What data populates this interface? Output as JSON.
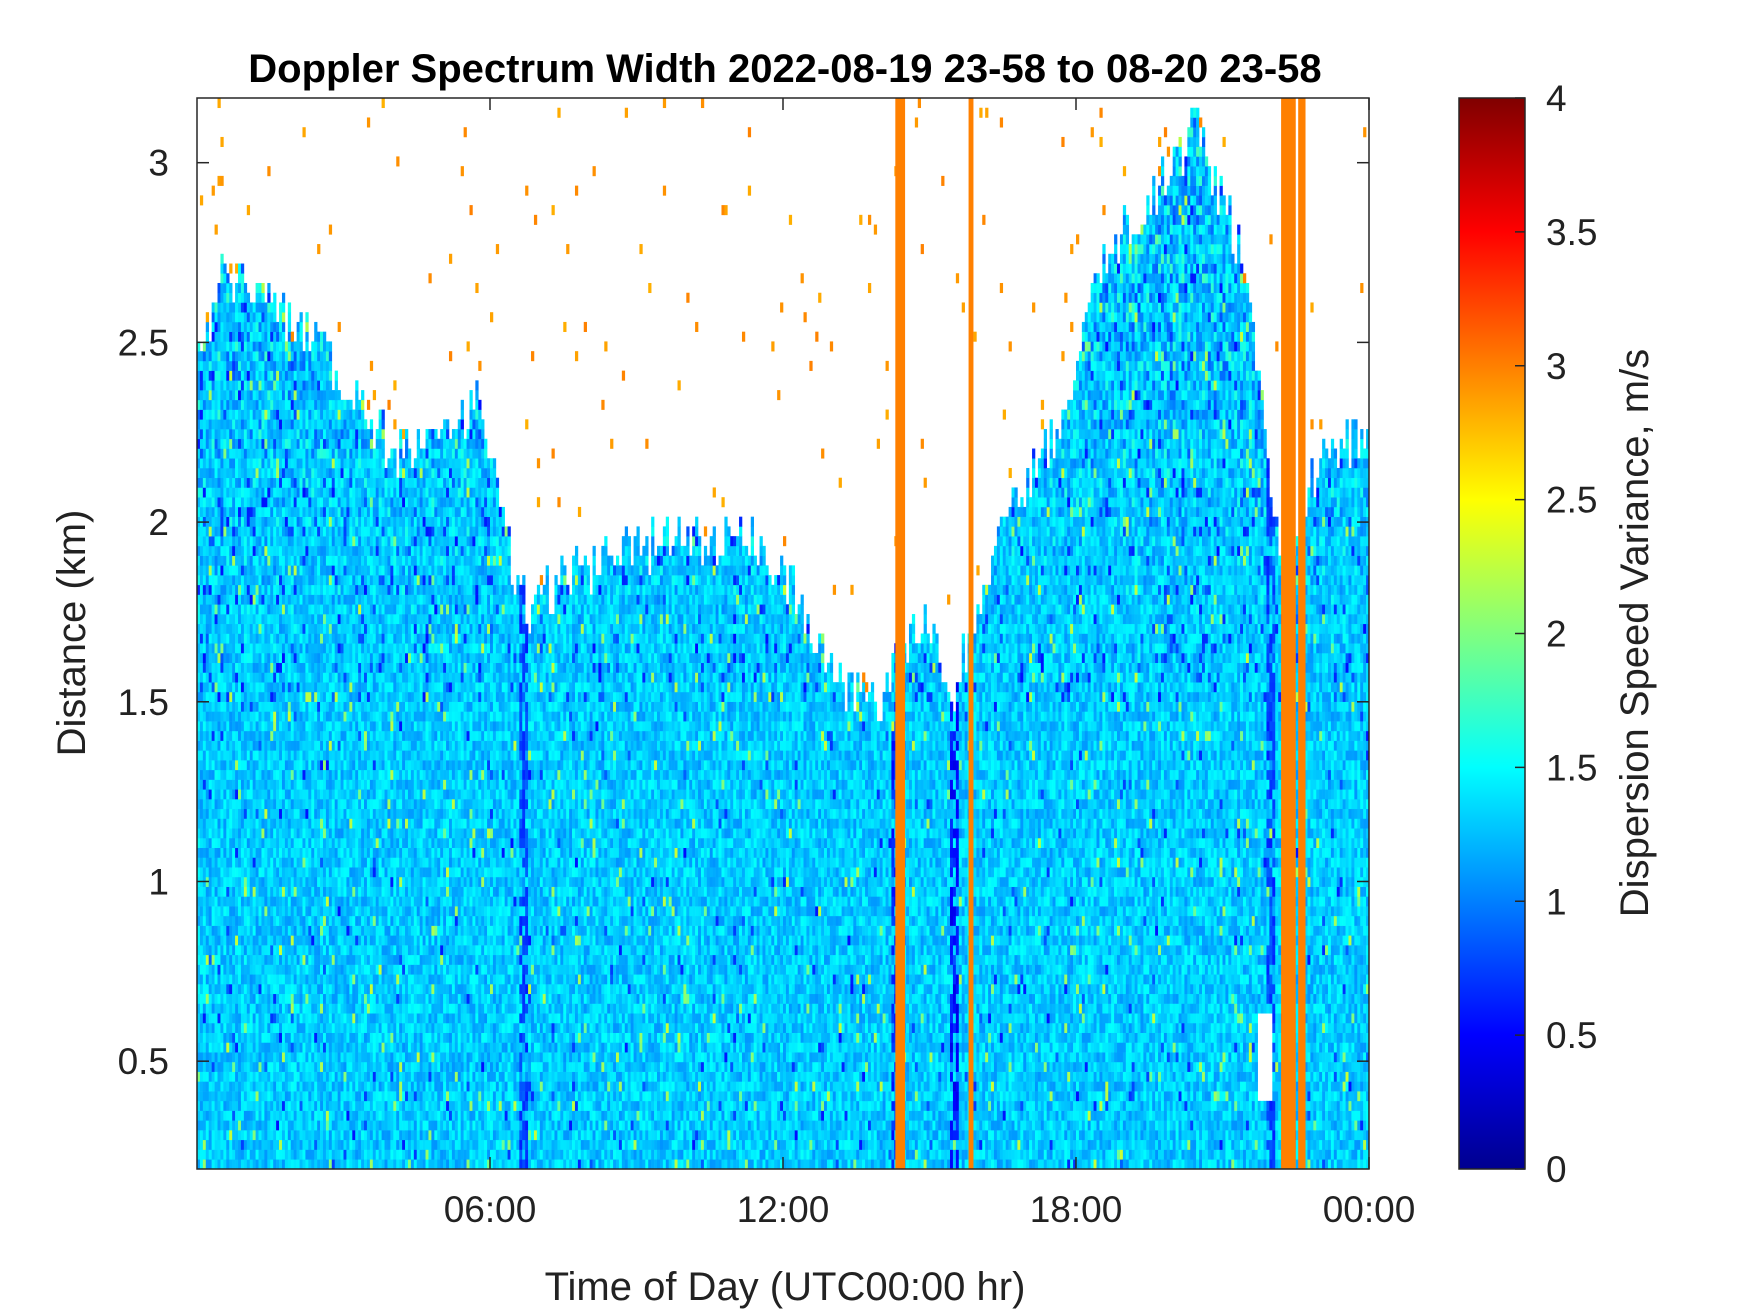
{
  "chart_data": {
    "type": "heatmap",
    "title": "Doppler Spectrum Width 2022-08-19 23-58 to 08-20 23-58",
    "xlabel": "Time of Day (UTC00:00 hr)",
    "ylabel": "Distance (km)",
    "x_unit": "hours since 2022-08-19 23:58 UTC",
    "xlim": [
      0,
      24
    ],
    "ylim": [
      0.2,
      3.18
    ],
    "x_ticks": [
      {
        "value": 6,
        "label": "06:00"
      },
      {
        "value": 12,
        "label": "12:00"
      },
      {
        "value": 18,
        "label": "18:00"
      },
      {
        "value": 24,
        "label": "00:00"
      }
    ],
    "y_ticks": [
      {
        "value": 0.5,
        "label": "0.5"
      },
      {
        "value": 1,
        "label": "1"
      },
      {
        "value": 1.5,
        "label": "1.5"
      },
      {
        "value": 2,
        "label": "2"
      },
      {
        "value": 2.5,
        "label": "2.5"
      },
      {
        "value": 3,
        "label": "3"
      }
    ],
    "colorbar": {
      "label": "Dispersion Speed Variance, m/s",
      "colormap": "jet",
      "range": [
        0,
        4
      ],
      "ticks": [
        {
          "value": 0,
          "label": "0"
        },
        {
          "value": 0.5,
          "label": "0.5"
        },
        {
          "value": 1,
          "label": "1"
        },
        {
          "value": 1.5,
          "label": "1.5"
        },
        {
          "value": 2,
          "label": "2"
        },
        {
          "value": 2.5,
          "label": "2.5"
        },
        {
          "value": 3,
          "label": "3"
        },
        {
          "value": 3.5,
          "label": "3.5"
        },
        {
          "value": 4,
          "label": "4"
        }
      ]
    },
    "typical_value_below_1_5km": 1.3,
    "data_top_profile": [
      {
        "t": 0,
        "top_km": 2.45
      },
      {
        "t": 0.5,
        "top_km": 2.7
      },
      {
        "t": 1.5,
        "top_km": 2.6
      },
      {
        "t": 2.5,
        "top_km": 2.5
      },
      {
        "t": 3.5,
        "top_km": 2.3
      },
      {
        "t": 4,
        "top_km": 2.2
      },
      {
        "t": 5,
        "top_km": 2.2
      },
      {
        "t": 5.8,
        "top_km": 2.35
      },
      {
        "t": 6.4,
        "top_km": 1.9
      },
      {
        "t": 6.8,
        "top_km": 1.75
      },
      {
        "t": 7.5,
        "top_km": 1.85
      },
      {
        "t": 8.5,
        "top_km": 1.9
      },
      {
        "t": 10,
        "top_km": 1.95
      },
      {
        "t": 11.5,
        "top_km": 1.95
      },
      {
        "t": 12.3,
        "top_km": 1.8
      },
      {
        "t": 13,
        "top_km": 1.55
      },
      {
        "t": 14,
        "top_km": 1.5
      },
      {
        "t": 14.8,
        "top_km": 1.75
      },
      {
        "t": 15.5,
        "top_km": 1.5
      },
      {
        "t": 16.2,
        "top_km": 1.9
      },
      {
        "t": 17,
        "top_km": 2.1
      },
      {
        "t": 17.8,
        "top_km": 2.3
      },
      {
        "t": 18.5,
        "top_km": 2.7
      },
      {
        "t": 19.5,
        "top_km": 2.9
      },
      {
        "t": 20.5,
        "top_km": 3.1
      },
      {
        "t": 21.5,
        "top_km": 2.7
      },
      {
        "t": 22,
        "top_km": 2.1
      },
      {
        "t": 22.3,
        "top_km": 1.8
      },
      {
        "t": 23,
        "top_km": 2.2
      },
      {
        "t": 24,
        "top_km": 2.25
      }
    ],
    "saturated_columns": [
      {
        "t_start": 14.3,
        "t_end": 14.5,
        "value": 3.0
      },
      {
        "t_start": 15.8,
        "t_end": 15.9,
        "value": 3.0
      },
      {
        "t_start": 22.2,
        "t_end": 22.5,
        "value": 3.0
      },
      {
        "t_start": 22.55,
        "t_end": 22.7,
        "value": 3.0
      }
    ],
    "low_value_columns": [
      {
        "t": 6.7,
        "value": 0.6
      },
      {
        "t": 14.3,
        "value": 0.5
      },
      {
        "t": 15.5,
        "value": 0.4
      },
      {
        "t": 22.0,
        "value": 0.6
      }
    ],
    "gaps": [
      {
        "t_start": 21.7,
        "t_end": 22.0,
        "y_start": 0.38,
        "y_end": 0.62
      }
    ]
  }
}
